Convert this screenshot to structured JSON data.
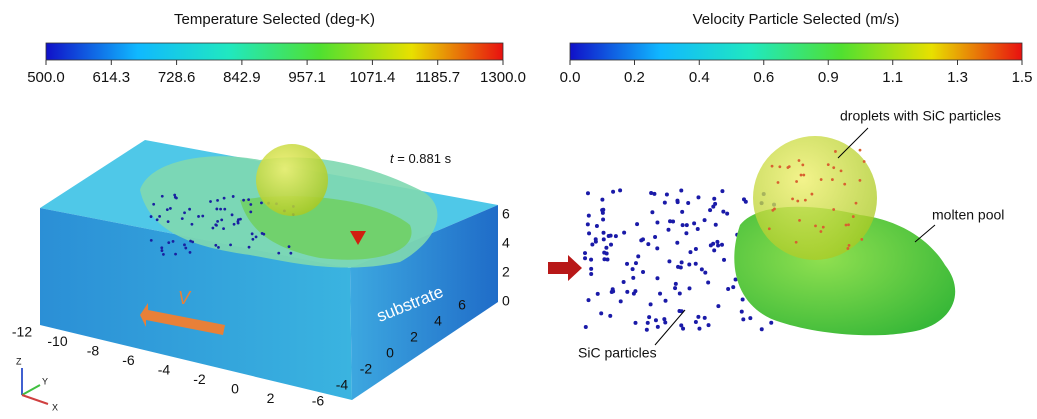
{
  "colorbars": [
    {
      "title": "Temperature Selected (deg-K)",
      "lim": [
        500,
        1300
      ],
      "ticks": [
        {
          "value": 500,
          "label": "500.0"
        },
        {
          "value": 614.3,
          "label": "614.3"
        },
        {
          "value": 728.6,
          "label": "728.6"
        },
        {
          "value": 842.9,
          "label": "842.9"
        },
        {
          "value": 957.1,
          "label": "957.1"
        },
        {
          "value": 1071.4,
          "label": "1071.4"
        },
        {
          "value": 1185.7,
          "label": "1185.7"
        },
        {
          "value": 1300,
          "label": "1300.0"
        }
      ]
    },
    {
      "title": "Velocity Particle Selected (m/s)",
      "lim": [
        0,
        1.5
      ],
      "ticks": [
        {
          "value": 0,
          "label": "0.0"
        },
        {
          "value": 0.214,
          "label": "0.2"
        },
        {
          "value": 0.429,
          "label": "0.4"
        },
        {
          "value": 0.643,
          "label": "0.6"
        },
        {
          "value": 0.857,
          "label": "0.9"
        },
        {
          "value": 1.071,
          "label": "1.1"
        },
        {
          "value": 1.286,
          "label": "1.3"
        },
        {
          "value": 1.5,
          "label": "1.5"
        }
      ]
    }
  ],
  "left_view": {
    "time_label": "t",
    "time_value": " = 0.881 s",
    "substrate_label": "substrate",
    "velocity_label": "V",
    "z_ticks": [
      6,
      4,
      2,
      0
    ],
    "x_ticks": [
      -12,
      -10,
      -8,
      -6,
      -4,
      -2,
      0,
      2
    ],
    "y_ticks": [
      -6,
      -4,
      -2,
      0,
      2,
      4,
      6
    ],
    "triad": [
      "Z",
      "Y",
      "X"
    ]
  },
  "right_view": {
    "droplet_label": "droplets with SiC particles",
    "pool_label": "molten pool",
    "particle_label": "SiC particles"
  }
}
